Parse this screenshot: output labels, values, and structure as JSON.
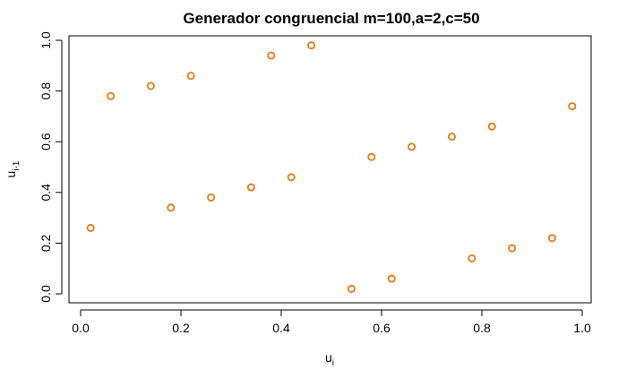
{
  "chart_data": {
    "type": "scatter",
    "title": "Generador congruencial m=100,a=2,c=50",
    "xlabel": {
      "base": "u",
      "sub": "i"
    },
    "ylabel": {
      "base": "u",
      "sub": "i-1"
    },
    "xlim": [
      -0.0,
      1.0
    ],
    "ylim": [
      0.0,
      1.0
    ],
    "xticks": [
      0.0,
      0.2,
      0.4,
      0.6,
      0.8,
      1.0
    ],
    "xtick_labels": [
      "0.0",
      "0.2",
      "0.4",
      "0.6",
      "0.8",
      "1.0"
    ],
    "yticks": [
      0.0,
      0.2,
      0.4,
      0.6,
      0.8,
      1.0
    ],
    "ytick_labels": [
      "0.0",
      "0.2",
      "0.4",
      "0.6",
      "0.8",
      "1.0"
    ],
    "grid": false,
    "marker": "open-circle",
    "color": "#e8780e",
    "points": [
      {
        "x": 0.02,
        "y": 0.26
      },
      {
        "x": 0.06,
        "y": 0.78
      },
      {
        "x": 0.14,
        "y": 0.82
      },
      {
        "x": 0.18,
        "y": 0.34
      },
      {
        "x": 0.22,
        "y": 0.86
      },
      {
        "x": 0.26,
        "y": 0.38
      },
      {
        "x": 0.34,
        "y": 0.42
      },
      {
        "x": 0.38,
        "y": 0.94
      },
      {
        "x": 0.42,
        "y": 0.46
      },
      {
        "x": 0.46,
        "y": 0.98
      },
      {
        "x": 0.54,
        "y": 0.02
      },
      {
        "x": 0.58,
        "y": 0.54
      },
      {
        "x": 0.62,
        "y": 0.06
      },
      {
        "x": 0.66,
        "y": 0.58
      },
      {
        "x": 0.74,
        "y": 0.62
      },
      {
        "x": 0.78,
        "y": 0.14
      },
      {
        "x": 0.82,
        "y": 0.66
      },
      {
        "x": 0.86,
        "y": 0.18
      },
      {
        "x": 0.94,
        "y": 0.22
      },
      {
        "x": 0.98,
        "y": 0.74
      }
    ]
  }
}
